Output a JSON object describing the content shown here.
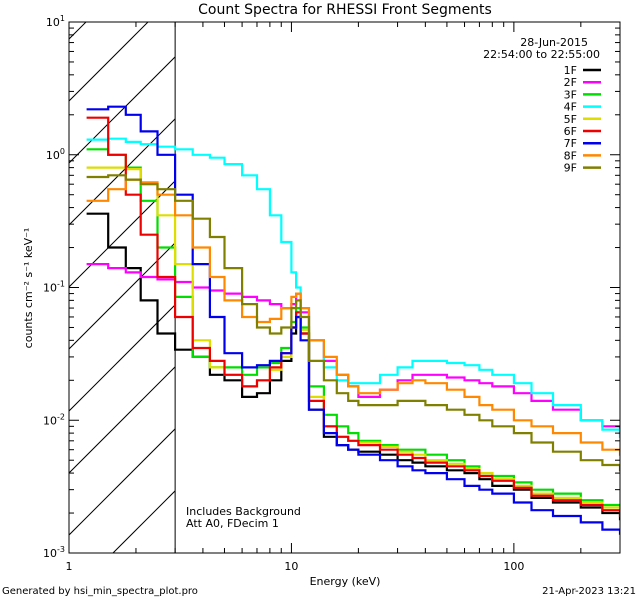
{
  "title": "Count Spectra for RHESSI Front Segments",
  "date_label": "28-Jun-2015",
  "time_range_label": "22:54:00 to 22:55:00",
  "footer_left": "Generated by hsi_min_spectra_plot.pro",
  "footer_right": "21-Apr-2023 13:21",
  "annotation_line1": "Includes Background",
  "annotation_line2": "Att A0, FDecim 1",
  "chart_data": {
    "type": "line",
    "title": "Count Spectra for RHESSI Front Segments",
    "xlabel": "Energy (keV)",
    "ylabel": "counts cm⁻² s⁻¹ keV⁻¹",
    "xscale": "log",
    "yscale": "log",
    "xlim": [
      1,
      300
    ],
    "ylim": [
      0.001,
      10
    ],
    "x_ticks": [
      {
        "value": 1,
        "label": "1"
      },
      {
        "value": 10,
        "label": "10"
      },
      {
        "value": 100,
        "label": "100"
      }
    ],
    "y_ticks": [
      {
        "value": 0.001,
        "base": "10",
        "exp": "-3"
      },
      {
        "value": 0.01,
        "base": "10",
        "exp": "-2"
      },
      {
        "value": 0.1,
        "base": "10",
        "exp": "-1"
      },
      {
        "value": 1,
        "base": "10",
        "exp": "0"
      },
      {
        "value": 10,
        "base": "10",
        "exp": "1"
      }
    ],
    "hatched_region": [
      1,
      3
    ],
    "legend_position": "top-right",
    "series": [
      {
        "name": "1F",
        "color": "#000000",
        "x": [
          1.2,
          1.5,
          1.8,
          2.1,
          2.5,
          3.0,
          3.6,
          4.3,
          5.0,
          6.0,
          7.0,
          8.0,
          9.0,
          10.0,
          10.5,
          11.0,
          12,
          14,
          16,
          18,
          20,
          25,
          30,
          35,
          40,
          50,
          60,
          70,
          80,
          100,
          120,
          150,
          200,
          250,
          300
        ],
        "y": [
          0.36,
          0.2,
          0.14,
          0.08,
          0.045,
          0.034,
          0.03,
          0.022,
          0.02,
          0.015,
          0.016,
          0.02,
          0.028,
          0.045,
          0.06,
          0.045,
          0.012,
          0.0075,
          0.0065,
          0.006,
          0.0058,
          0.0055,
          0.005,
          0.0048,
          0.0045,
          0.0042,
          0.004,
          0.0036,
          0.0032,
          0.003,
          0.0026,
          0.0024,
          0.0022,
          0.002,
          0.0018
        ]
      },
      {
        "name": "2F",
        "color": "#ff00ff",
        "x": [
          1.2,
          1.5,
          1.8,
          2.1,
          2.5,
          3.0,
          3.6,
          4.3,
          5.0,
          6.0,
          7.0,
          8.0,
          9.0,
          10.0,
          10.5,
          11.0,
          12,
          14,
          16,
          18,
          20,
          25,
          30,
          35,
          40,
          50,
          60,
          70,
          80,
          100,
          120,
          150,
          200,
          250,
          300
        ],
        "y": [
          0.15,
          0.14,
          0.13,
          0.12,
          0.115,
          0.11,
          0.1,
          0.095,
          0.09,
          0.085,
          0.08,
          0.075,
          0.07,
          0.075,
          0.09,
          0.065,
          0.04,
          0.028,
          0.022,
          0.018,
          0.015,
          0.017,
          0.02,
          0.022,
          0.022,
          0.021,
          0.02,
          0.019,
          0.018,
          0.016,
          0.014,
          0.012,
          0.01,
          0.009,
          0.008
        ]
      },
      {
        "name": "3F",
        "color": "#00dd00",
        "x": [
          1.2,
          1.5,
          1.8,
          2.1,
          2.5,
          3.0,
          3.6,
          4.3,
          5.0,
          6.0,
          7.0,
          8.0,
          9.0,
          10.0,
          10.5,
          11.0,
          12,
          14,
          16,
          18,
          20,
          25,
          30,
          35,
          40,
          50,
          60,
          70,
          80,
          100,
          120,
          150,
          200,
          250,
          300
        ],
        "y": [
          1.1,
          1.0,
          0.8,
          0.45,
          0.2,
          0.085,
          0.03,
          0.025,
          0.025,
          0.022,
          0.025,
          0.027,
          0.035,
          0.055,
          0.07,
          0.05,
          0.018,
          0.011,
          0.009,
          0.008,
          0.007,
          0.0065,
          0.006,
          0.006,
          0.0055,
          0.005,
          0.0045,
          0.004,
          0.0038,
          0.0034,
          0.003,
          0.0028,
          0.0025,
          0.0023,
          0.002
        ]
      },
      {
        "name": "4F",
        "color": "#00ffff",
        "x": [
          1.2,
          1.5,
          1.8,
          2.1,
          2.5,
          3.0,
          3.6,
          4.3,
          5.0,
          6.0,
          7.0,
          8.0,
          9.0,
          10.0,
          10.5,
          11.0,
          12,
          14,
          16,
          18,
          20,
          25,
          30,
          35,
          40,
          50,
          60,
          70,
          80,
          100,
          120,
          150,
          200,
          250,
          300
        ],
        "y": [
          1.3,
          1.32,
          1.25,
          1.2,
          1.15,
          1.1,
          1.0,
          0.95,
          0.85,
          0.7,
          0.55,
          0.35,
          0.22,
          0.13,
          0.1,
          0.07,
          0.04,
          0.025,
          0.02,
          0.019,
          0.019,
          0.022,
          0.025,
          0.028,
          0.028,
          0.027,
          0.026,
          0.024,
          0.022,
          0.019,
          0.016,
          0.013,
          0.01,
          0.0085,
          0.0075
        ]
      },
      {
        "name": "5F",
        "color": "#dddd00",
        "x": [
          1.2,
          1.5,
          1.8,
          2.1,
          2.5,
          3.0,
          3.6,
          4.3,
          5.0,
          6.0,
          7.0,
          8.0,
          9.0,
          10.0,
          10.5,
          11.0,
          12,
          14,
          16,
          18,
          20,
          25,
          30,
          35,
          40,
          50,
          60,
          70,
          80,
          100,
          120,
          150,
          200,
          250,
          300
        ],
        "y": [
          0.8,
          0.8,
          0.78,
          0.6,
          0.35,
          0.15,
          0.04,
          0.025,
          0.022,
          0.018,
          0.02,
          0.024,
          0.03,
          0.05,
          0.065,
          0.048,
          0.015,
          0.009,
          0.0075,
          0.007,
          0.0068,
          0.0063,
          0.0058,
          0.0055,
          0.005,
          0.0047,
          0.0043,
          0.004,
          0.0036,
          0.0032,
          0.0028,
          0.0026,
          0.0024,
          0.0022,
          0.002
        ]
      },
      {
        "name": "6F",
        "color": "#ee0000",
        "x": [
          1.2,
          1.5,
          1.8,
          2.1,
          2.5,
          3.0,
          3.6,
          4.3,
          5.0,
          6.0,
          7.0,
          8.0,
          9.0,
          10.0,
          10.5,
          11.0,
          12,
          14,
          16,
          18,
          20,
          25,
          30,
          35,
          40,
          50,
          60,
          70,
          80,
          100,
          120,
          150,
          200,
          250,
          300
        ],
        "y": [
          1.9,
          1.0,
          0.5,
          0.25,
          0.12,
          0.06,
          0.035,
          0.028,
          0.022,
          0.018,
          0.02,
          0.025,
          0.032,
          0.05,
          0.065,
          0.045,
          0.014,
          0.009,
          0.0075,
          0.007,
          0.0065,
          0.006,
          0.0055,
          0.0052,
          0.0048,
          0.0045,
          0.0042,
          0.0038,
          0.0035,
          0.0031,
          0.0027,
          0.0025,
          0.0023,
          0.0021,
          0.0019
        ]
      },
      {
        "name": "7F",
        "color": "#0000ee",
        "x": [
          1.2,
          1.5,
          1.8,
          2.1,
          2.5,
          3.0,
          3.6,
          4.3,
          5.0,
          6.0,
          7.0,
          8.0,
          9.0,
          10.0,
          10.5,
          11.0,
          12,
          14,
          16,
          18,
          20,
          25,
          30,
          35,
          40,
          50,
          60,
          70,
          80,
          100,
          120,
          150,
          200,
          250,
          300
        ],
        "y": [
          2.2,
          2.3,
          2.0,
          1.5,
          1.0,
          0.5,
          0.15,
          0.06,
          0.032,
          0.025,
          0.026,
          0.028,
          0.032,
          0.05,
          0.06,
          0.04,
          0.012,
          0.008,
          0.0065,
          0.006,
          0.0055,
          0.005,
          0.0045,
          0.0042,
          0.004,
          0.0036,
          0.0032,
          0.003,
          0.0028,
          0.0024,
          0.0021,
          0.0019,
          0.0017,
          0.0015,
          0.0014
        ]
      },
      {
        "name": "8F",
        "color": "#ff8800",
        "x": [
          1.2,
          1.5,
          1.8,
          2.1,
          2.5,
          3.0,
          3.6,
          4.3,
          5.0,
          6.0,
          7.0,
          8.0,
          9.0,
          10.0,
          10.5,
          11.0,
          12,
          14,
          16,
          18,
          20,
          25,
          30,
          35,
          40,
          50,
          60,
          70,
          80,
          100,
          120,
          150,
          200,
          250,
          300
        ],
        "y": [
          0.45,
          0.55,
          0.65,
          0.62,
          0.5,
          0.35,
          0.2,
          0.12,
          0.08,
          0.06,
          0.055,
          0.058,
          0.07,
          0.085,
          0.09,
          0.07,
          0.04,
          0.03,
          0.022,
          0.018,
          0.016,
          0.017,
          0.019,
          0.02,
          0.019,
          0.017,
          0.015,
          0.013,
          0.012,
          0.01,
          0.009,
          0.008,
          0.0068,
          0.006,
          0.0055
        ]
      },
      {
        "name": "9F",
        "color": "#808000",
        "x": [
          1.2,
          1.5,
          1.8,
          2.1,
          2.5,
          3.0,
          3.6,
          4.3,
          5.0,
          6.0,
          7.0,
          8.0,
          9.0,
          10.0,
          10.5,
          11.0,
          12,
          14,
          16,
          18,
          20,
          25,
          30,
          35,
          40,
          50,
          60,
          70,
          80,
          100,
          120,
          150,
          200,
          250,
          300
        ],
        "y": [
          0.68,
          0.7,
          0.65,
          0.6,
          0.55,
          0.45,
          0.33,
          0.24,
          0.14,
          0.075,
          0.05,
          0.045,
          0.05,
          0.07,
          0.08,
          0.06,
          0.028,
          0.02,
          0.016,
          0.014,
          0.013,
          0.013,
          0.014,
          0.014,
          0.013,
          0.012,
          0.011,
          0.01,
          0.009,
          0.008,
          0.0068,
          0.0058,
          0.005,
          0.0046,
          0.0042
        ]
      }
    ]
  }
}
